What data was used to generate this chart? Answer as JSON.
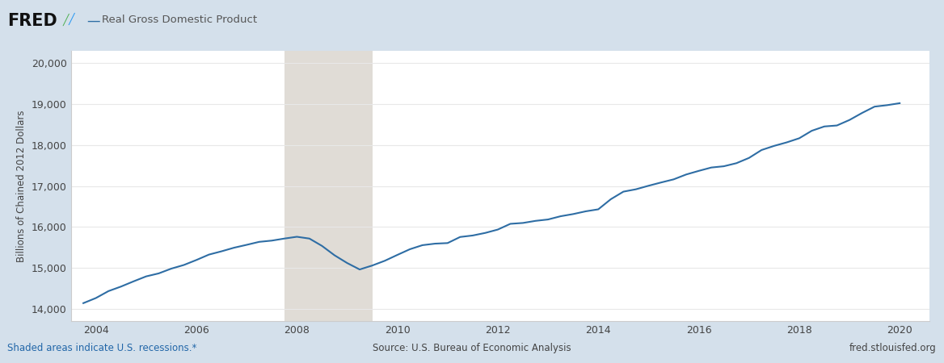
{
  "title": "Real Gross Domestic Product",
  "ylabel": "Billions of Chained 2012 Dollars",
  "line_color": "#2e6da4",
  "background_color": "#d4e0eb",
  "plot_bg_color": "#ffffff",
  "recession_color": "#e0dcd6",
  "recession_start": 2007.75,
  "recession_end": 2009.5,
  "footer_left": "Shaded areas indicate U.S. recessions.*",
  "footer_center": "Source: U.S. Bureau of Economic Analysis",
  "footer_right": "fred.stlouisfed.org",
  "footer_link_color": "#2166a8",
  "footer_text_color": "#444444",
  "grid_color": "#e8e8e8",
  "tick_color": "#444444",
  "ylabel_color": "#444444",
  "ylim": [
    13700,
    20300
  ],
  "xlim": [
    2003.5,
    2020.6
  ],
  "yticks": [
    14000,
    15000,
    16000,
    17000,
    18000,
    19000,
    20000
  ],
  "xticks": [
    2004,
    2006,
    2008,
    2010,
    2012,
    2014,
    2016,
    2018,
    2020
  ],
  "gdp_data": {
    "years": [
      2003.75,
      2004.0,
      2004.25,
      2004.5,
      2004.75,
      2005.0,
      2005.25,
      2005.5,
      2005.75,
      2006.0,
      2006.25,
      2006.5,
      2006.75,
      2007.0,
      2007.25,
      2007.5,
      2007.75,
      2008.0,
      2008.25,
      2008.5,
      2008.75,
      2009.0,
      2009.25,
      2009.5,
      2009.75,
      2010.0,
      2010.25,
      2010.5,
      2010.75,
      2011.0,
      2011.25,
      2011.5,
      2011.75,
      2012.0,
      2012.25,
      2012.5,
      2012.75,
      2013.0,
      2013.25,
      2013.5,
      2013.75,
      2014.0,
      2014.25,
      2014.5,
      2014.75,
      2015.0,
      2015.25,
      2015.5,
      2015.75,
      2016.0,
      2016.25,
      2016.5,
      2016.75,
      2017.0,
      2017.25,
      2017.5,
      2017.75,
      2018.0,
      2018.25,
      2018.5,
      2018.75,
      2019.0,
      2019.25,
      2019.5,
      2019.75,
      2020.0
    ],
    "values": [
      14142,
      14267,
      14436,
      14547,
      14674,
      14795,
      14868,
      14984,
      15073,
      15195,
      15327,
      15407,
      15495,
      15565,
      15638,
      15668,
      15718,
      15762,
      15718,
      15539,
      15310,
      15122,
      14964,
      15060,
      15176,
      15319,
      15458,
      15557,
      15594,
      15608,
      15757,
      15793,
      15856,
      15938,
      16078,
      16099,
      16150,
      16184,
      16263,
      16316,
      16383,
      16432,
      16679,
      16863,
      16921,
      17007,
      17087,
      17163,
      17282,
      17370,
      17452,
      17483,
      17558,
      17686,
      17879,
      17980,
      18065,
      18166,
      18349,
      18454,
      18478,
      18612,
      18783,
      18938,
      18974,
      19022
    ]
  }
}
